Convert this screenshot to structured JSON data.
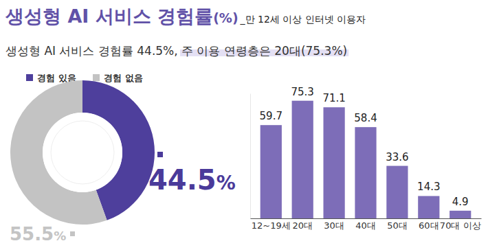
{
  "chart_data": [
    {
      "type": "pie",
      "title": "생성형 AI 서비스 경험률(%)",
      "subtitle": "_만 12세 이상 인터넷 이용자",
      "annotations": [
        "생성형 AI 서비스 경험률 44.5%, 주 이용 연령층은 20대(75.3%)"
      ],
      "categories": [
        "경험 있음",
        "경험 없음"
      ],
      "values": [
        44.5,
        55.5
      ],
      "value_labels": [
        "44.5%",
        "55.5%"
      ],
      "colors": [
        "#4e3f9c",
        "#c3c3c3"
      ],
      "data_labels": true,
      "legend": "top-left"
    },
    {
      "type": "bar",
      "categories": [
        "12~19세",
        "20대",
        "30대",
        "40대",
        "50대",
        "60대",
        "70대 이상"
      ],
      "values": [
        59.7,
        75.3,
        71.1,
        58.4,
        33.6,
        14.3,
        4.9
      ],
      "color": "#7d6db8",
      "ylim": [
        0,
        80
      ],
      "data_labels": true,
      "tick_labels": "x"
    }
  ]
}
